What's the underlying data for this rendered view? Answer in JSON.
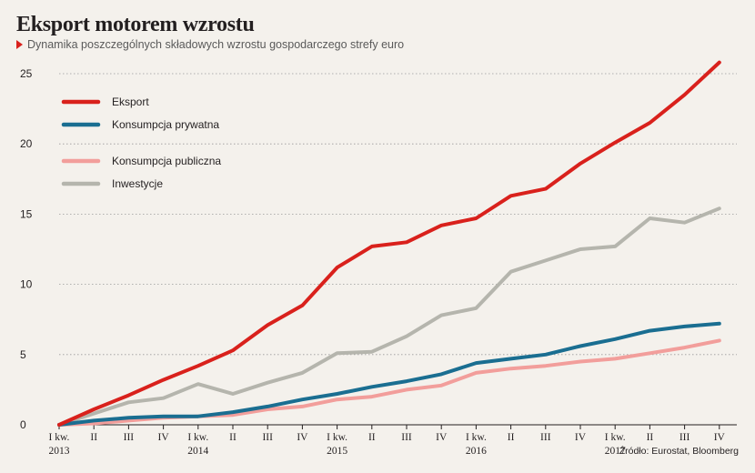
{
  "header": {
    "title": "Eksport motorem wzrostu",
    "subtitle": "Dynamika poszczególnych składowych wzrostu gospodarczego strefy euro"
  },
  "source": "Źródło: Eurostat, Bloomberg",
  "chart_data": {
    "type": "line",
    "title": "Eksport motorem wzrostu",
    "subtitle": "Dynamika poszczególnych składowych wzrostu gospodarczego strefy euro",
    "xlabel": "",
    "ylabel": "",
    "ylim": [
      0,
      25
    ],
    "yticks": [
      0,
      5,
      10,
      15,
      20,
      25
    ],
    "grid": "horizontal dotted",
    "legend_placement": "top-left",
    "x": [
      "I kw.",
      "II",
      "III",
      "IV",
      "I kw.",
      "II",
      "III",
      "IV",
      "I kw.",
      "II",
      "III",
      "IV",
      "I kw.",
      "II",
      "III",
      "IV",
      "I kw.",
      "II",
      "III",
      "IV"
    ],
    "years": [
      {
        "label": "2013",
        "index": 0
      },
      {
        "label": "2014",
        "index": 4
      },
      {
        "label": "2015",
        "index": 8
      },
      {
        "label": "2016",
        "index": 12
      },
      {
        "label": "2017",
        "index": 16
      }
    ],
    "series": [
      {
        "name": "Eksport",
        "color": "#d9211c",
        "values": [
          0,
          1.1,
          2.1,
          3.2,
          4.2,
          5.3,
          7.1,
          8.5,
          11.2,
          12.7,
          13.0,
          14.2,
          14.7,
          16.3,
          16.8,
          18.6,
          20.1,
          21.5,
          23.5,
          25.8
        ]
      },
      {
        "name": "Konsumpcja prywatna",
        "color": "#1a6e91",
        "values": [
          0,
          0.3,
          0.5,
          0.6,
          0.6,
          0.9,
          1.3,
          1.8,
          2.2,
          2.7,
          3.1,
          3.6,
          4.4,
          4.7,
          5.0,
          5.6,
          6.1,
          6.7,
          7.0,
          7.2
        ]
      },
      {
        "name": "Konsumpcja publiczna",
        "color": "#f29e9b",
        "values": [
          0,
          0.1,
          0.3,
          0.5,
          0.6,
          0.7,
          1.1,
          1.3,
          1.8,
          2.0,
          2.5,
          2.8,
          3.7,
          4.0,
          4.2,
          4.5,
          4.7,
          5.1,
          5.5,
          6.0
        ]
      },
      {
        "name": "Inwestycje",
        "color": "#b5b5ad",
        "values": [
          0,
          0.8,
          1.6,
          1.9,
          2.9,
          2.2,
          3.0,
          3.7,
          5.1,
          5.2,
          6.3,
          7.8,
          8.3,
          10.9,
          11.7,
          12.5,
          12.7,
          14.7,
          14.4,
          15.4
        ]
      }
    ]
  }
}
